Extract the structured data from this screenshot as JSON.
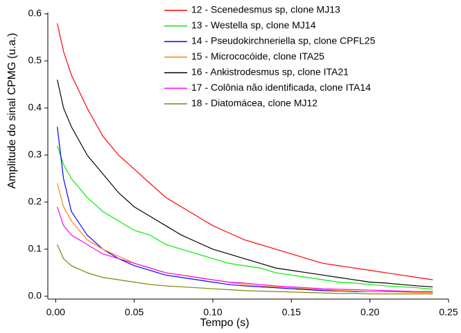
{
  "chart_data": {
    "type": "line",
    "x_label": "Tempo (s)",
    "y_label": "Amplitude do sinal CPMG (u.a.)",
    "x": [
      0.001,
      0.005,
      0.01,
      0.02,
      0.03,
      0.04,
      0.05,
      0.06,
      0.07,
      0.08,
      0.09,
      0.1,
      0.11,
      0.12,
      0.13,
      0.14,
      0.15,
      0.16,
      0.17,
      0.18,
      0.19,
      0.2,
      0.21,
      0.22,
      0.23,
      0.24
    ],
    "series": [
      {
        "name": "12 - Scenedesmus sp, clone MJ13",
        "color": "#ff0000",
        "values": [
          0.58,
          0.52,
          0.47,
          0.4,
          0.34,
          0.3,
          0.27,
          0.24,
          0.21,
          0.19,
          0.17,
          0.15,
          0.135,
          0.12,
          0.11,
          0.1,
          0.09,
          0.08,
          0.07,
          0.065,
          0.06,
          0.055,
          0.05,
          0.045,
          0.04,
          0.035
        ]
      },
      {
        "name": "13 - Westella sp, clone MJ14",
        "color": "#00ee00",
        "values": [
          0.32,
          0.28,
          0.25,
          0.21,
          0.18,
          0.16,
          0.14,
          0.13,
          0.11,
          0.1,
          0.09,
          0.08,
          0.07,
          0.065,
          0.06,
          0.05,
          0.045,
          0.04,
          0.035,
          0.03,
          0.028,
          0.025,
          0.022,
          0.02,
          0.018,
          0.015
        ]
      },
      {
        "name": "14 - Pseudokirchneriella sp, clone CPFL25",
        "color": "#0000ff",
        "values": [
          0.36,
          0.25,
          0.18,
          0.13,
          0.1,
          0.08,
          0.065,
          0.055,
          0.045,
          0.04,
          0.035,
          0.03,
          0.025,
          0.022,
          0.02,
          0.018,
          0.016,
          0.014,
          0.012,
          0.011,
          0.01,
          0.01,
          0.01,
          0.01,
          0.01,
          0.01
        ]
      },
      {
        "name": "15 - Micrococóide, clone ITA25",
        "color": "#ff8000",
        "values": [
          0.24,
          0.19,
          0.16,
          0.12,
          0.1,
          0.085,
          0.07,
          0.06,
          0.05,
          0.045,
          0.04,
          0.035,
          0.03,
          0.025,
          0.022,
          0.02,
          0.018,
          0.016,
          0.014,
          0.012,
          0.011,
          0.01,
          0.01,
          0.009,
          0.008,
          0.008
        ]
      },
      {
        "name": "16 - Ankistrodesmus sp, clone ITA21",
        "color": "#000000",
        "values": [
          0.46,
          0.4,
          0.36,
          0.3,
          0.26,
          0.22,
          0.19,
          0.17,
          0.15,
          0.13,
          0.115,
          0.1,
          0.09,
          0.08,
          0.07,
          0.06,
          0.055,
          0.05,
          0.045,
          0.04,
          0.035,
          0.03,
          0.028,
          0.025,
          0.022,
          0.02
        ]
      },
      {
        "name": "17 - Colônia não identificada, clone ITA14",
        "color": "#ff00ff",
        "values": [
          0.19,
          0.15,
          0.13,
          0.11,
          0.09,
          0.08,
          0.07,
          0.06,
          0.05,
          0.045,
          0.04,
          0.035,
          0.03,
          0.028,
          0.025,
          0.022,
          0.02,
          0.018,
          0.016,
          0.015,
          0.014,
          0.013,
          0.012,
          0.011,
          0.01,
          0.01
        ]
      },
      {
        "name": "18 - Diatomácea, clone MJ12",
        "color": "#808000",
        "values": [
          0.11,
          0.08,
          0.065,
          0.05,
          0.04,
          0.035,
          0.03,
          0.025,
          0.022,
          0.02,
          0.018,
          0.016,
          0.014,
          0.012,
          0.011,
          0.01,
          0.009,
          0.008,
          0.007,
          0.006,
          0.006,
          0.005,
          0.005,
          0.005,
          0.005,
          0.005
        ]
      }
    ],
    "xlim": [
      -0.005,
      0.25
    ],
    "ylim": [
      -0.006,
      0.6
    ],
    "xticks": [
      {
        "value": 0,
        "label": "0.00"
      },
      0.05,
      {
        "value": 0.1,
        "label": "0.10"
      },
      0.15,
      {
        "value": 0.2,
        "label": "0.20"
      },
      0.25
    ],
    "yticks": [
      {
        "value": 0,
        "label": "0.0"
      },
      0.1,
      0.2,
      0.3,
      0.4,
      0.5,
      0.6
    ],
    "legend": "upper-right"
  }
}
